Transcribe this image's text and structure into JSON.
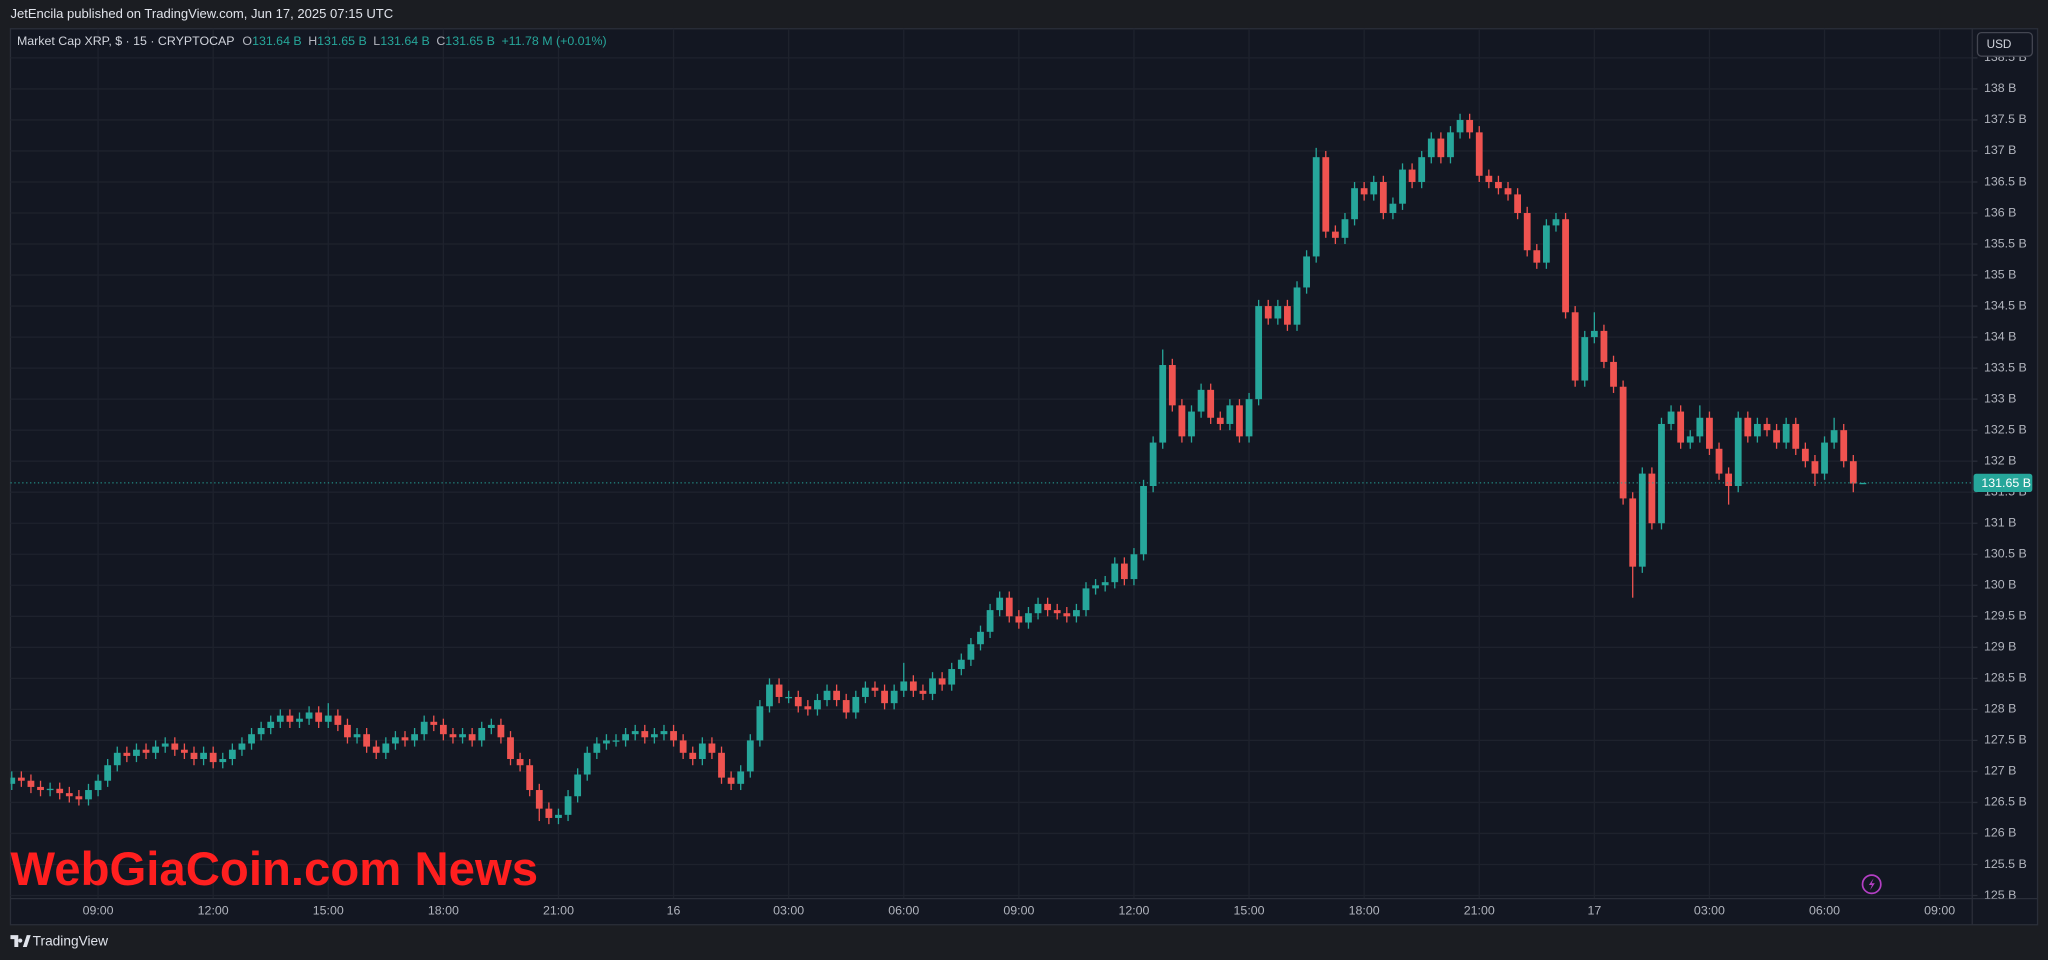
{
  "header": {
    "publisher": "JetEncila published on TradingView.com, Jun 17, 2025 07:15 UTC"
  },
  "chart_data": {
    "type": "candlestick",
    "title": "Market Cap XRP, $ · 15 · CRYPTOCAP",
    "legend": [
      {
        "key": "O",
        "value": "131.64 B"
      },
      {
        "key": "H",
        "value": "131.65 B"
      },
      {
        "key": "L",
        "value": "131.64 B"
      },
      {
        "key": "C",
        "value": "131.65 B"
      }
    ],
    "change": "+11.78 M (+0.01%)",
    "currency": "USD",
    "up_color": "#26a69a",
    "down_color": "#ef5350",
    "grid": true,
    "x": [
      6.75,
      7,
      7.25,
      7.5,
      7.75,
      8,
      8.25,
      8.5,
      8.75,
      9,
      9.25,
      9.5,
      9.75,
      10,
      10.25,
      10.5,
      10.75,
      11,
      11.25,
      11.5,
      11.75,
      12,
      12.25,
      12.5,
      12.75,
      13,
      13.25,
      13.5,
      13.75,
      14,
      14.25,
      14.5,
      14.75,
      15,
      15.25,
      15.5,
      15.75,
      16,
      16.25,
      16.5,
      16.75,
      17,
      17.25,
      17.5,
      17.75,
      18,
      18.25,
      18.5,
      18.75,
      19,
      19.25,
      19.5,
      19.75,
      20,
      20.25,
      20.5,
      20.75,
      21,
      21.25,
      21.5,
      21.75,
      22,
      22.25,
      22.5,
      22.75,
      23,
      23.25,
      23.5,
      23.75,
      24,
      24.25,
      24.5,
      24.75,
      25,
      25.25,
      25.5,
      25.75,
      26,
      26.25,
      26.5,
      26.75,
      27,
      27.25,
      27.5,
      27.75,
      28,
      28.25,
      28.5,
      28.75,
      29,
      29.25,
      29.5,
      29.75,
      30,
      30.25,
      30.5,
      30.75,
      31,
      31.25,
      31.5,
      31.75,
      32,
      32.25,
      32.5,
      32.75,
      33,
      33.25,
      33.5,
      33.75,
      34,
      34.25,
      34.5,
      34.75,
      35,
      35.25,
      35.5,
      35.75,
      36,
      36.25,
      36.5,
      36.75,
      37,
      37.25,
      37.5,
      37.75,
      38,
      38.25,
      38.5,
      38.75,
      39,
      39.25,
      39.5,
      39.75,
      40,
      40.25,
      40.5,
      40.75,
      41,
      41.25,
      41.5,
      41.75,
      42,
      42.25,
      42.5,
      42.75,
      43,
      43.25,
      43.5,
      43.75,
      44,
      44.25,
      44.5,
      44.75,
      45,
      45.25,
      45.5,
      45.75,
      46,
      46.25,
      46.5,
      46.75,
      47,
      47.25,
      47.5,
      47.75,
      48,
      48.25,
      48.5,
      48.75,
      49,
      49.25,
      49.5,
      49.75,
      50,
      50.25,
      50.5,
      50.75,
      51,
      51.25,
      51.5,
      51.75,
      52,
      52.25,
      52.5,
      52.75,
      53,
      53.25,
      53.5,
      53.75,
      54,
      54.25,
      54.5,
      54.75,
      55
    ],
    "open": [
      126.8,
      126.9,
      126.85,
      126.75,
      126.7,
      126.72,
      126.65,
      126.6,
      126.55,
      126.7,
      126.85,
      127.1,
      127.3,
      127.25,
      127.35,
      127.3,
      127.4,
      127.45,
      127.35,
      127.3,
      127.2,
      127.3,
      127.15,
      127.2,
      127.35,
      127.45,
      127.6,
      127.7,
      127.8,
      127.9,
      127.8,
      127.85,
      127.95,
      127.8,
      127.9,
      127.75,
      127.55,
      127.6,
      127.4,
      127.3,
      127.45,
      127.55,
      127.5,
      127.6,
      127.8,
      127.75,
      127.6,
      127.55,
      127.6,
      127.5,
      127.7,
      127.75,
      127.55,
      127.2,
      127.1,
      126.7,
      126.4,
      126.25,
      126.3,
      126.6,
      126.95,
      127.3,
      127.45,
      127.5,
      127.5,
      127.6,
      127.65,
      127.55,
      127.6,
      127.65,
      127.5,
      127.3,
      127.2,
      127.45,
      127.3,
      126.9,
      126.8,
      127.0,
      127.5,
      128.05,
      128.4,
      128.2,
      128.2,
      128.05,
      128.0,
      128.15,
      128.3,
      128.15,
      127.95,
      128.2,
      128.35,
      128.3,
      128.1,
      128.3,
      128.45,
      128.3,
      128.25,
      128.5,
      128.4,
      128.65,
      128.8,
      129.05,
      129.25,
      129.6,
      129.8,
      129.5,
      129.4,
      129.55,
      129.7,
      129.6,
      129.55,
      129.5,
      129.6,
      129.95,
      130.0,
      130.05,
      130.35,
      130.1,
      130.5,
      131.6,
      132.3,
      133.55,
      132.9,
      132.4,
      132.8,
      133.15,
      132.7,
      132.6,
      132.9,
      132.4,
      133.0,
      134.5,
      134.3,
      134.5,
      134.2,
      134.8,
      135.3,
      136.9,
      135.7,
      135.6,
      135.9,
      136.4,
      136.3,
      136.5,
      136.0,
      136.15,
      136.7,
      136.5,
      136.9,
      137.2,
      136.9,
      137.3,
      137.5,
      137.3,
      136.6,
      136.5,
      136.4,
      136.3,
      136.0,
      135.4,
      135.2,
      135.8,
      135.9,
      134.4,
      133.3,
      134.0,
      134.1,
      133.6,
      133.2,
      131.4,
      130.3,
      131.8,
      131.0,
      132.6,
      132.8,
      132.3,
      132.4,
      132.7,
      132.2,
      131.8,
      131.6,
      132.7,
      132.4,
      132.6,
      132.5,
      132.3,
      132.6,
      132.2,
      132.0,
      131.8,
      132.3,
      132.5,
      132.0,
      131.64
    ],
    "high": [
      127.0,
      127.0,
      126.95,
      126.85,
      126.82,
      126.82,
      126.75,
      126.7,
      126.8,
      126.95,
      127.2,
      127.4,
      127.4,
      127.45,
      127.45,
      127.5,
      127.55,
      127.55,
      127.45,
      127.4,
      127.4,
      127.4,
      127.3,
      127.45,
      127.55,
      127.7,
      127.8,
      127.9,
      128.0,
      128.0,
      127.95,
      128.05,
      128.05,
      128.1,
      128.0,
      127.85,
      127.7,
      127.7,
      127.5,
      127.55,
      127.65,
      127.65,
      127.7,
      127.9,
      127.9,
      127.85,
      127.7,
      127.7,
      127.7,
      127.8,
      127.85,
      127.85,
      127.65,
      127.3,
      127.2,
      126.8,
      126.5,
      126.4,
      126.7,
      127.05,
      127.4,
      127.55,
      127.6,
      127.6,
      127.7,
      127.75,
      127.75,
      127.7,
      127.75,
      127.75,
      127.6,
      127.4,
      127.55,
      127.55,
      127.4,
      127.0,
      127.1,
      127.6,
      128.15,
      128.5,
      128.5,
      128.3,
      128.3,
      128.15,
      128.25,
      128.4,
      128.4,
      128.25,
      128.3,
      128.45,
      128.45,
      128.4,
      128.4,
      128.75,
      128.55,
      128.4,
      128.6,
      128.6,
      128.75,
      128.9,
      129.15,
      129.35,
      129.7,
      129.9,
      129.9,
      129.6,
      129.65,
      129.8,
      129.8,
      129.7,
      129.65,
      129.7,
      130.05,
      130.1,
      130.15,
      130.45,
      130.45,
      130.6,
      131.7,
      132.4,
      133.8,
      133.65,
      133.0,
      132.9,
      133.25,
      133.25,
      132.8,
      133.0,
      133.0,
      133.1,
      134.6,
      134.6,
      134.6,
      134.6,
      134.9,
      135.4,
      137.05,
      137.0,
      135.8,
      136.0,
      136.5,
      136.5,
      136.6,
      136.6,
      136.25,
      136.8,
      136.8,
      137.0,
      137.3,
      137.3,
      137.4,
      137.6,
      137.6,
      137.4,
      136.7,
      136.6,
      136.5,
      136.4,
      136.1,
      135.5,
      135.9,
      136.0,
      136.0,
      134.5,
      134.1,
      134.4,
      134.2,
      133.7,
      133.3,
      131.5,
      131.9,
      131.9,
      132.7,
      132.9,
      132.9,
      132.5,
      132.9,
      132.8,
      132.3,
      131.9,
      132.8,
      132.8,
      132.7,
      132.7,
      132.6,
      132.7,
      132.7,
      132.3,
      132.1,
      132.4,
      132.7,
      132.6,
      132.1,
      131.65
    ],
    "low": [
      126.7,
      126.75,
      126.65,
      126.6,
      126.6,
      126.55,
      126.5,
      126.45,
      126.45,
      126.6,
      126.75,
      127.0,
      127.15,
      127.15,
      127.2,
      127.2,
      127.3,
      127.25,
      127.2,
      127.1,
      127.1,
      127.05,
      127.05,
      127.1,
      127.25,
      127.35,
      127.5,
      127.6,
      127.7,
      127.7,
      127.7,
      127.75,
      127.7,
      127.7,
      127.65,
      127.45,
      127.45,
      127.3,
      127.2,
      127.2,
      127.35,
      127.4,
      127.4,
      127.5,
      127.65,
      127.5,
      127.45,
      127.45,
      127.4,
      127.4,
      127.6,
      127.45,
      127.1,
      127.0,
      126.6,
      126.2,
      126.15,
      126.15,
      126.2,
      126.5,
      126.85,
      127.2,
      127.35,
      127.4,
      127.4,
      127.5,
      127.45,
      127.45,
      127.5,
      127.4,
      127.2,
      127.1,
      127.1,
      127.2,
      126.8,
      126.7,
      126.7,
      126.9,
      127.4,
      127.95,
      128.1,
      128.1,
      127.95,
      127.9,
      127.9,
      128.05,
      128.05,
      127.85,
      127.85,
      128.1,
      128.2,
      128.0,
      128.0,
      128.2,
      128.2,
      128.15,
      128.15,
      128.3,
      128.3,
      128.55,
      128.7,
      128.95,
      129.15,
      129.5,
      129.4,
      129.3,
      129.3,
      129.45,
      129.5,
      129.45,
      129.4,
      129.4,
      129.5,
      129.85,
      129.9,
      129.95,
      130.0,
      130.0,
      130.4,
      131.5,
      132.2,
      132.8,
      132.3,
      132.3,
      132.7,
      132.6,
      132.5,
      132.5,
      132.3,
      132.3,
      132.9,
      134.2,
      134.2,
      134.1,
      134.1,
      134.7,
      135.2,
      135.6,
      135.5,
      135.5,
      135.8,
      136.2,
      136.2,
      135.9,
      135.9,
      136.05,
      136.4,
      136.4,
      136.8,
      136.8,
      136.8,
      137.2,
      137.2,
      136.5,
      136.4,
      136.3,
      136.2,
      135.9,
      135.3,
      135.1,
      135.1,
      135.7,
      134.3,
      133.2,
      133.2,
      133.9,
      133.5,
      133.1,
      131.3,
      129.8,
      130.2,
      130.9,
      130.9,
      132.5,
      132.2,
      132.2,
      132.3,
      132.1,
      131.7,
      131.3,
      131.5,
      132.3,
      132.3,
      132.4,
      132.2,
      132.2,
      132.1,
      131.9,
      131.6,
      131.7,
      132.2,
      131.9,
      131.5,
      131.64
    ],
    "close": [
      126.9,
      126.85,
      126.75,
      126.7,
      126.72,
      126.65,
      126.6,
      126.55,
      126.7,
      126.85,
      127.1,
      127.3,
      127.25,
      127.35,
      127.3,
      127.4,
      127.45,
      127.35,
      127.3,
      127.2,
      127.3,
      127.15,
      127.2,
      127.35,
      127.45,
      127.6,
      127.7,
      127.8,
      127.9,
      127.8,
      127.85,
      127.95,
      127.8,
      127.9,
      127.75,
      127.55,
      127.6,
      127.4,
      127.3,
      127.45,
      127.55,
      127.5,
      127.6,
      127.8,
      127.75,
      127.6,
      127.55,
      127.6,
      127.5,
      127.7,
      127.75,
      127.55,
      127.2,
      127.1,
      126.7,
      126.4,
      126.25,
      126.3,
      126.6,
      126.95,
      127.3,
      127.45,
      127.5,
      127.5,
      127.6,
      127.65,
      127.55,
      127.6,
      127.65,
      127.5,
      127.3,
      127.2,
      127.45,
      127.3,
      126.9,
      126.8,
      127.0,
      127.5,
      128.05,
      128.4,
      128.2,
      128.2,
      128.05,
      128.0,
      128.15,
      128.3,
      128.15,
      127.95,
      128.2,
      128.35,
      128.3,
      128.1,
      128.3,
      128.45,
      128.3,
      128.25,
      128.5,
      128.4,
      128.65,
      128.8,
      129.05,
      129.25,
      129.6,
      129.8,
      129.5,
      129.4,
      129.55,
      129.7,
      129.6,
      129.55,
      129.5,
      129.6,
      129.95,
      130.0,
      130.05,
      130.35,
      130.1,
      130.5,
      131.6,
      132.3,
      133.55,
      132.9,
      132.4,
      132.8,
      133.15,
      132.7,
      132.6,
      132.9,
      132.4,
      133.0,
      134.5,
      134.3,
      134.5,
      134.2,
      134.8,
      135.3,
      136.9,
      135.7,
      135.6,
      135.9,
      136.4,
      136.3,
      136.5,
      136.0,
      136.15,
      136.7,
      136.5,
      136.9,
      137.2,
      136.9,
      137.3,
      137.5,
      137.3,
      136.6,
      136.5,
      136.4,
      136.3,
      136.0,
      135.4,
      135.2,
      135.8,
      135.9,
      134.4,
      133.3,
      134.0,
      134.1,
      133.6,
      133.2,
      131.4,
      130.3,
      131.8,
      131.0,
      132.6,
      132.8,
      132.3,
      132.4,
      132.7,
      132.2,
      131.8,
      131.6,
      132.7,
      132.4,
      132.6,
      132.5,
      132.3,
      132.6,
      132.2,
      132.0,
      131.8,
      132.3,
      132.5,
      132.0,
      131.64,
      131.65
    ],
    "xlim": [
      6.716,
      57.85
    ],
    "xticks": [
      {
        "value": 9,
        "label": "09:00"
      },
      {
        "value": 12,
        "label": "12:00"
      },
      {
        "value": 15,
        "label": "15:00"
      },
      {
        "value": 18,
        "label": "18:00"
      },
      {
        "value": 21,
        "label": "21:00"
      },
      {
        "value": 24,
        "label": "16"
      },
      {
        "value": 27,
        "label": "03:00"
      },
      {
        "value": 30,
        "label": "06:00"
      },
      {
        "value": 33,
        "label": "09:00"
      },
      {
        "value": 36,
        "label": "12:00"
      },
      {
        "value": 39,
        "label": "15:00"
      },
      {
        "value": 42,
        "label": "18:00"
      },
      {
        "value": 45,
        "label": "21:00"
      },
      {
        "value": 48,
        "label": "17"
      },
      {
        "value": 51,
        "label": "03:00"
      },
      {
        "value": 54,
        "label": "06:00"
      },
      {
        "value": 57,
        "label": "09:00"
      }
    ],
    "ylim": [
      124.95,
      138.97
    ],
    "yticks": [
      {
        "value": 125,
        "label": "125 B"
      },
      {
        "value": 125.5,
        "label": "125.5 B"
      },
      {
        "value": 126,
        "label": "126 B"
      },
      {
        "value": 126.5,
        "label": "126.5 B"
      },
      {
        "value": 127,
        "label": "127 B"
      },
      {
        "value": 127.5,
        "label": "127.5 B"
      },
      {
        "value": 128,
        "label": "128 B"
      },
      {
        "value": 128.5,
        "label": "128.5 B"
      },
      {
        "value": 129,
        "label": "129 B"
      },
      {
        "value": 129.5,
        "label": "129.5 B"
      },
      {
        "value": 130,
        "label": "130 B"
      },
      {
        "value": 130.5,
        "label": "130.5 B"
      },
      {
        "value": 131,
        "label": "131 B"
      },
      {
        "value": 131.5,
        "label": "131.5 B"
      },
      {
        "value": 132,
        "label": "132 B"
      },
      {
        "value": 132.5,
        "label": "132.5 B"
      },
      {
        "value": 133,
        "label": "133 B"
      },
      {
        "value": 133.5,
        "label": "133.5 B"
      },
      {
        "value": 134,
        "label": "134 B"
      },
      {
        "value": 134.5,
        "label": "134.5 B"
      },
      {
        "value": 135,
        "label": "135 B"
      },
      {
        "value": 135.5,
        "label": "135.5 B"
      },
      {
        "value": 136,
        "label": "136 B"
      },
      {
        "value": 136.5,
        "label": "136.5 B"
      },
      {
        "value": 137,
        "label": "137 B"
      },
      {
        "value": 137.5,
        "label": "137.5 B"
      },
      {
        "value": 138,
        "label": "138 B"
      },
      {
        "value": 138.5,
        "label": "138.5 B"
      }
    ],
    "last_price": {
      "value": 131.65,
      "label": "131.65 B"
    }
  },
  "watermark": "WebGiaCoin.com News",
  "footer": {
    "brand": "TradingView"
  }
}
